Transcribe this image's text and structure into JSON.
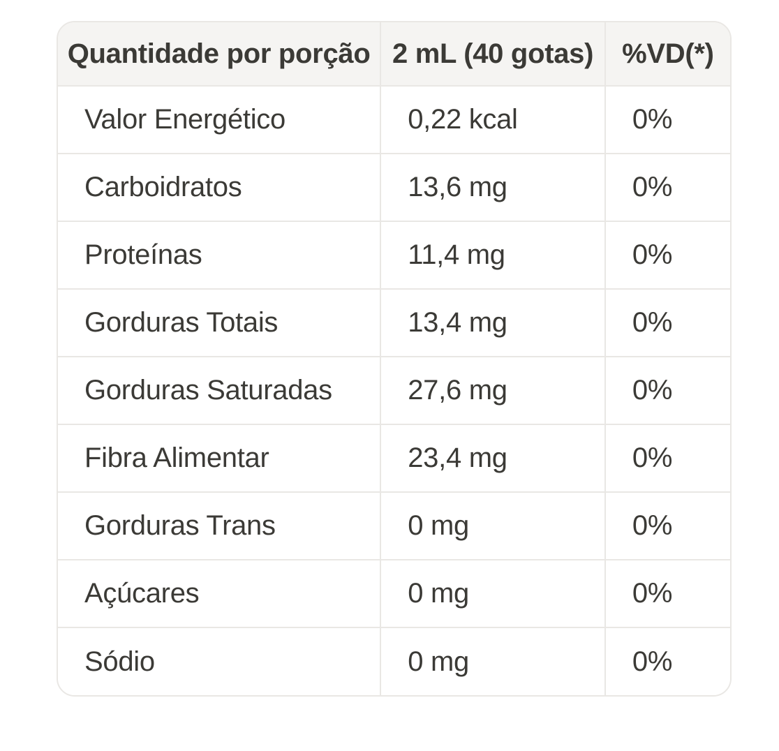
{
  "colors": {
    "text": "#3b3a36",
    "border": "#e9e7e4",
    "header_background": "#f5f4f2",
    "row_background": "#ffffff"
  },
  "chart_data": {
    "type": "table",
    "columns": [
      "Quantidade por porção",
      "2 mL (40 gotas)",
      "%VD(*)"
    ],
    "rows": [
      [
        "Valor Energético",
        "0,22 kcal",
        "0%"
      ],
      [
        "Carboidratos",
        "13,6 mg",
        "0%"
      ],
      [
        "Proteínas",
        "11,4 mg",
        "0%"
      ],
      [
        "Gorduras Totais",
        "13,4 mg",
        "0%"
      ],
      [
        "Gorduras Saturadas",
        "27,6 mg",
        "0%"
      ],
      [
        "Fibra Alimentar",
        "23,4 mg",
        "0%"
      ],
      [
        "Gorduras Trans",
        "0 mg",
        "0%"
      ],
      [
        "Açúcares",
        "0 mg",
        "0%"
      ],
      [
        "Sódio",
        "0 mg",
        "0%"
      ]
    ],
    "layout": {
      "header_align": "center",
      "cell_align": "left",
      "grid": "on",
      "rounded_corners": true
    }
  }
}
